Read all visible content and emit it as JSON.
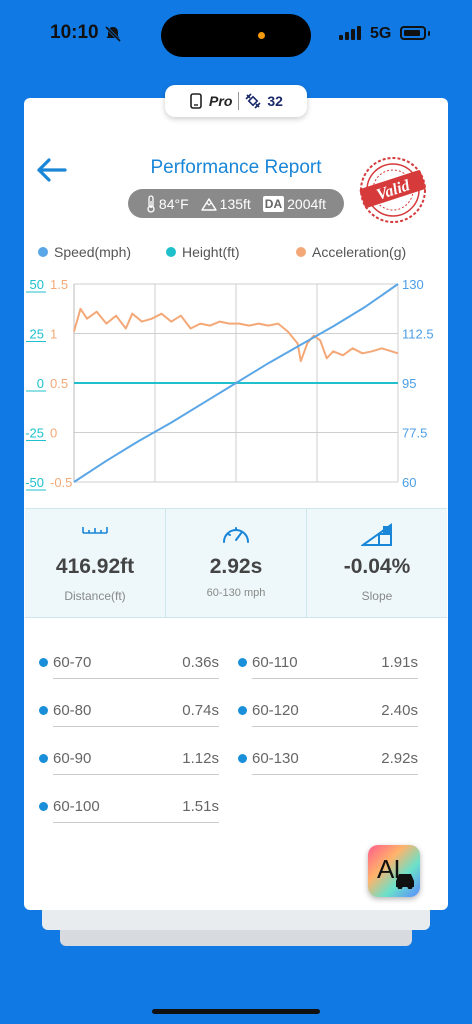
{
  "status_bar": {
    "time": "10:10",
    "network": "5G"
  },
  "badge": {
    "pro_label": "Pro",
    "count": "32"
  },
  "header": {
    "title": "Performance Report",
    "stamp_text": "Valid"
  },
  "conditions": {
    "temperature": "84°F",
    "altitude": "135ft",
    "da_label": "DA",
    "density_altitude": "2004ft"
  },
  "colors": {
    "speed": "#5aa6e6",
    "height": "#1fc0cc",
    "acceleration": "#f4a877",
    "accent": "#1a86d8",
    "background": "#1179e3"
  },
  "chart_data": {
    "type": "line",
    "legend": [
      "Speed(mph)",
      "Height(ft)",
      "Acceleration(g)"
    ],
    "legend_position": "top",
    "grid": true,
    "axes": {
      "height_ticks": [
        "50",
        "25",
        "0",
        "-25",
        "-50"
      ],
      "accel_ticks": [
        "1.5",
        "1",
        "0.5",
        "0",
        "-0.5"
      ],
      "speed_ticks": [
        "130",
        "112.5",
        "95",
        "77.5",
        "60"
      ],
      "height_range": [
        -50,
        50
      ],
      "accel_range": [
        -0.5,
        1.5
      ],
      "speed_range": [
        60,
        130
      ]
    },
    "series": [
      {
        "name": "Speed(mph)",
        "axis": "speed",
        "x": [
          0,
          0.1,
          0.2,
          0.3,
          0.4,
          0.5,
          0.6,
          0.7,
          0.8,
          0.9,
          1.0
        ],
        "values": [
          60,
          67.5,
          74.5,
          81,
          88,
          95,
          102,
          108.5,
          115,
          122,
          130
        ]
      },
      {
        "name": "Height(ft)",
        "axis": "height",
        "x": [
          0,
          1.0
        ],
        "values": [
          0,
          0
        ]
      },
      {
        "name": "Acceleration(g)",
        "axis": "accel",
        "x": [
          0,
          0.02,
          0.04,
          0.07,
          0.1,
          0.13,
          0.16,
          0.18,
          0.21,
          0.24,
          0.27,
          0.3,
          0.33,
          0.36,
          0.39,
          0.42,
          0.45,
          0.48,
          0.51,
          0.54,
          0.57,
          0.6,
          0.63,
          0.66,
          0.69,
          0.7,
          0.72,
          0.74,
          0.76,
          0.78,
          0.8,
          0.83,
          0.86,
          0.89,
          0.92,
          0.95,
          0.98,
          1.0
        ],
        "values": [
          1.02,
          1.25,
          1.15,
          1.22,
          1.1,
          1.18,
          1.05,
          1.2,
          1.12,
          1.15,
          1.2,
          1.12,
          1.18,
          1.05,
          1.1,
          1.08,
          1.12,
          1.1,
          1.1,
          1.08,
          1.1,
          1.08,
          1.1,
          1.02,
          0.9,
          0.72,
          0.9,
          0.98,
          0.93,
          0.75,
          0.82,
          0.78,
          0.85,
          0.8,
          0.82,
          0.85,
          0.82,
          0.8
        ]
      }
    ]
  },
  "stats": [
    {
      "value": "416.92ft",
      "label": "Distance(ft)"
    },
    {
      "value": "2.92s",
      "label": "60-130 mph"
    },
    {
      "value": "-0.04%",
      "label": "Slope"
    }
  ],
  "splits": [
    {
      "name": "60-70",
      "time": "0.36s"
    },
    {
      "name": "60-80",
      "time": "0.74s"
    },
    {
      "name": "60-90",
      "time": "1.12s"
    },
    {
      "name": "60-100",
      "time": "1.51s"
    },
    {
      "name": "60-110",
      "time": "1.91s"
    },
    {
      "name": "60-120",
      "time": "2.40s"
    },
    {
      "name": "60-130",
      "time": "2.92s"
    }
  ],
  "ai_button": {
    "label": "AI"
  }
}
